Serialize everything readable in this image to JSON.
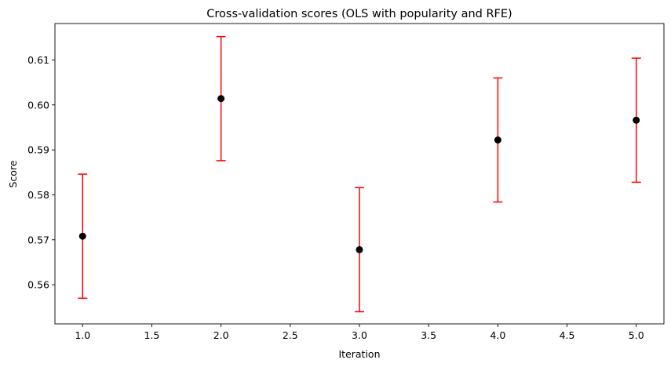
{
  "chart_data": {
    "type": "scatter",
    "title": "Cross-validation scores (OLS with popularity and RFE)",
    "xlabel": "Iteration",
    "ylabel": "Score",
    "xlim": [
      0.8,
      5.2
    ],
    "ylim": [
      0.5513,
      0.6181
    ],
    "xticks": [
      "1.0",
      "1.5",
      "2.0",
      "2.5",
      "3.0",
      "3.5",
      "4.0",
      "4.5",
      "5.0"
    ],
    "yticks": [
      "0.56",
      "0.57",
      "0.58",
      "0.59",
      "0.60",
      "0.61"
    ],
    "grid": false,
    "legend": "none",
    "series": [
      {
        "x": [
          1,
          2,
          3,
          4,
          5
        ],
        "y": [
          0.5708,
          0.6014,
          0.5678,
          0.5922,
          0.5966
        ],
        "yerr": [
          0.0138,
          0.0138,
          0.0138,
          0.0138,
          0.0138
        ],
        "marker_color": "#000000",
        "errorbar_color": "#ff0000"
      }
    ]
  }
}
